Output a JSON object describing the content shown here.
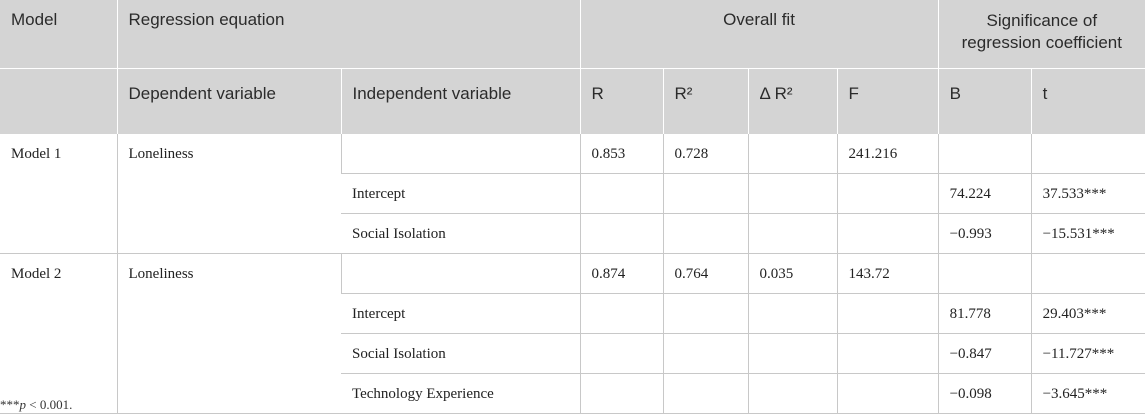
{
  "header": {
    "model": "Model",
    "regression_equation": "Regression equation",
    "overall_fit": "Overall fit",
    "significance": "Significance of regression coefficient",
    "dependent_variable": "Dependent variable",
    "independent_variable": "Independent variable",
    "r": "R",
    "r2": "R²",
    "delta_r2": "Δ R²",
    "f": "F",
    "b": "B",
    "t": "t"
  },
  "models": [
    {
      "name": "Model 1",
      "dependent": "Loneliness",
      "fit": {
        "r": "0.853",
        "r2": "0.728",
        "delta_r2": "",
        "f": "241.216"
      },
      "rows": [
        {
          "independent": "Intercept",
          "b": "74.224",
          "t": "37.533***"
        },
        {
          "independent": "Social Isolation",
          "b": "−0.993",
          "t": "−15.531***"
        }
      ]
    },
    {
      "name": "Model 2",
      "dependent": "Loneliness",
      "fit": {
        "r": "0.874",
        "r2": "0.764",
        "delta_r2": "0.035",
        "f": "143.72"
      },
      "rows": [
        {
          "independent": "Intercept",
          "b": "81.778",
          "t": "29.403***"
        },
        {
          "independent": "Social Isolation",
          "b": "−0.847",
          "t": "−11.727***"
        },
        {
          "independent": "Technology Experience",
          "b": "−0.098",
          "t": "−3.645***"
        }
      ]
    }
  ],
  "footnote": {
    "stars": "***",
    "p": "p",
    "rest": " < 0.001."
  }
}
